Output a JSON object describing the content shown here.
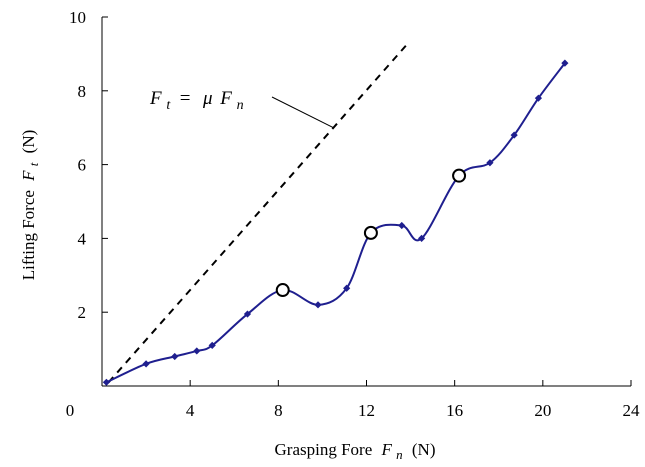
{
  "chart_data": {
    "type": "line",
    "xlabel": "Grasping Fore",
    "xlabel_symbol": "F",
    "xlabel_sub": "n",
    "xlabel_unit": "(N)",
    "ylabel": "Lifting Force",
    "ylabel_symbol": "F",
    "ylabel_sub": "t",
    "ylabel_unit": "(N)",
    "xlim": [
      0,
      24
    ],
    "ylim": [
      0,
      10
    ],
    "x_ticks": [
      0,
      4,
      8,
      12,
      16,
      20,
      24
    ],
    "y_ticks": [
      2,
      4,
      6,
      8,
      10
    ],
    "grid": false,
    "colors": {
      "series": "#1f1f8f",
      "reference": "#000000"
    },
    "series": [
      {
        "style": "solid-smooth-diamond-markers",
        "x": [
          0.2,
          2.0,
          3.3,
          4.3,
          5.0,
          6.6,
          8.2,
          9.8,
          11.1,
          12.2,
          13.6,
          14.5,
          16.2,
          17.6,
          18.7,
          19.8,
          21.0
        ],
        "y": [
          0.1,
          0.6,
          0.8,
          0.95,
          1.1,
          1.95,
          2.6,
          2.2,
          2.65,
          4.15,
          4.35,
          4.0,
          5.7,
          6.05,
          6.8,
          7.8,
          8.75
        ]
      },
      {
        "style": "dashed-reference",
        "x": [
          0.3,
          13.9
        ],
        "y": [
          0.1,
          9.3
        ]
      }
    ],
    "highlighted_points": {
      "x": [
        8.2,
        12.2,
        16.2
      ],
      "y": [
        2.6,
        4.15,
        5.7
      ]
    },
    "annotation": {
      "symbol": "F",
      "sub": "t",
      "equals": " = ",
      "mu": "μ",
      "symbol2": "F",
      "sub2": "n",
      "points_to": {
        "x": 10.5,
        "y": 7.0
      }
    }
  }
}
